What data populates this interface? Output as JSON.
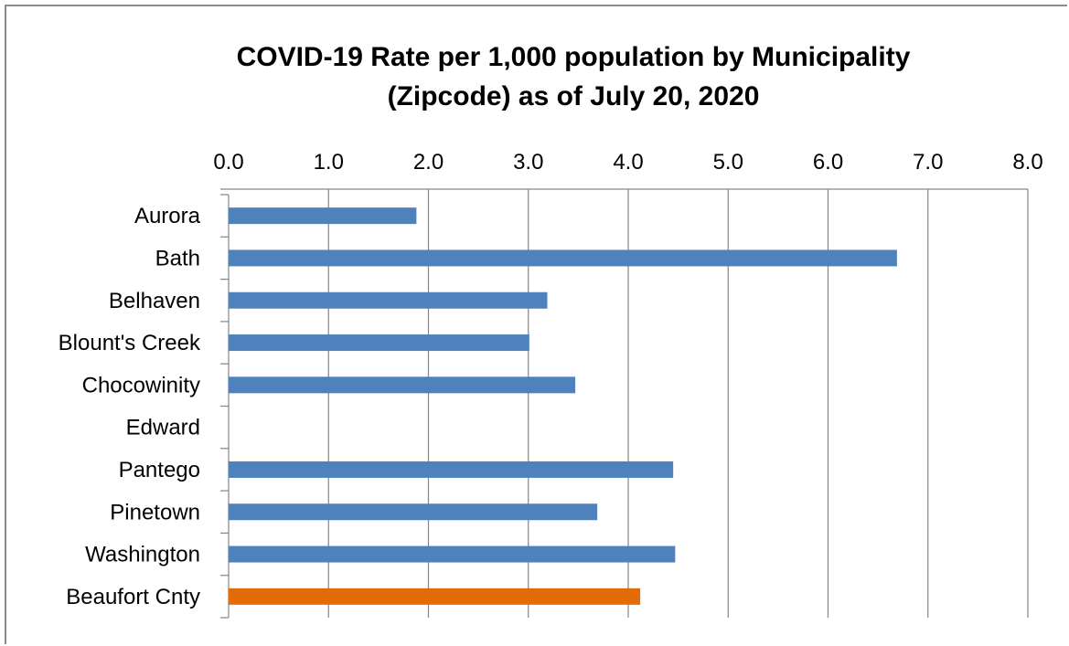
{
  "chart_data": {
    "type": "bar",
    "orientation": "horizontal",
    "title_lines": [
      "COVID-19 Rate per 1,000 population  by Municipality",
      "(Zipcode)  as of July 20, 2020"
    ],
    "xlabel": "",
    "ylabel": "",
    "xlim": [
      0,
      8
    ],
    "x_ticks": [
      "0.0",
      "1.0",
      "2.0",
      "3.0",
      "4.0",
      "5.0",
      "6.0",
      "7.0",
      "8.0"
    ],
    "x_axis_position": "top",
    "grid": "vertical",
    "legend": "none",
    "categories": [
      "Aurora",
      "Bath",
      "Belhaven",
      "Blount's Creek",
      "Chocowinity",
      "Edward",
      "Pantego",
      "Pinetown",
      "Washington",
      "Beaufort Cnty"
    ],
    "values": [
      1.88,
      6.69,
      3.19,
      3.01,
      3.47,
      0,
      4.45,
      3.69,
      4.47,
      4.12
    ],
    "bar_colors": [
      "#4f81bd",
      "#4f81bd",
      "#4f81bd",
      "#4f81bd",
      "#4f81bd",
      "#4f81bd",
      "#4f81bd",
      "#4f81bd",
      "#4f81bd",
      "#e36c09"
    ],
    "colors": {
      "primary": "#4f81bd",
      "highlight": "#e36c09",
      "grid": "#868686"
    }
  }
}
